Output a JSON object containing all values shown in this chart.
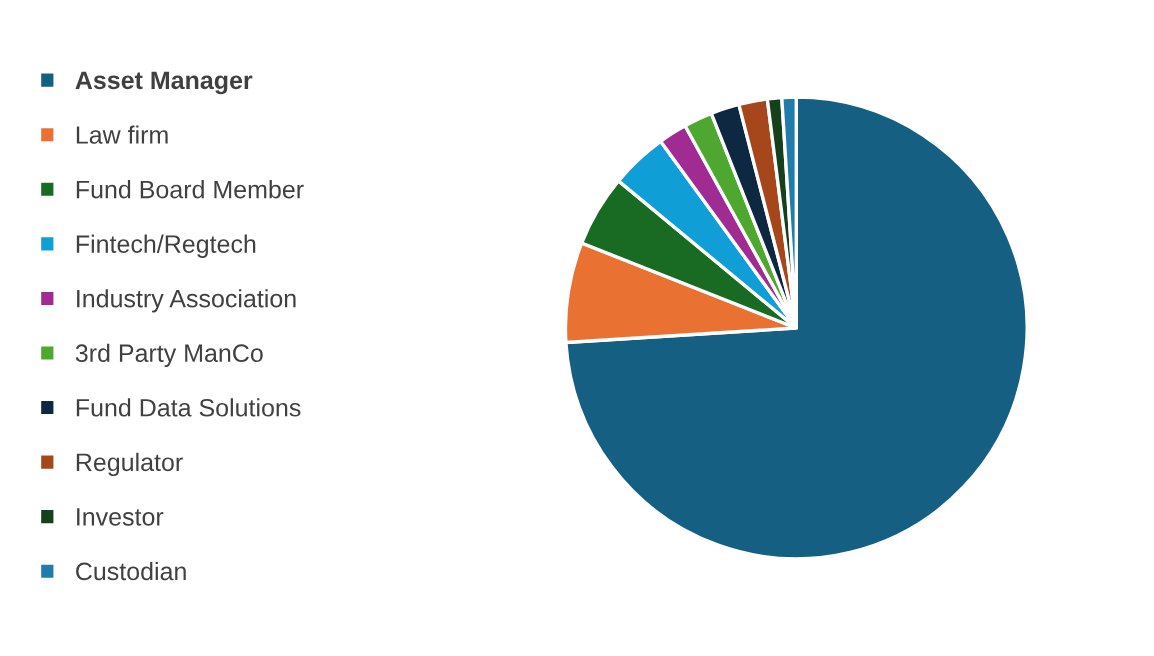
{
  "chart_data": {
    "type": "pie",
    "legend": "left",
    "categories": [
      "Asset Manager",
      "Law firm",
      "Fund Board Member",
      "Fintech/Regtech",
      "Industry Association",
      "3rd Party ManCo",
      "Fund Data Solutions",
      "Regulator",
      "Investor",
      "Custodian"
    ],
    "values": [
      74,
      7,
      5,
      4,
      2,
      2,
      2,
      2,
      1,
      1
    ],
    "colors": [
      "#156082",
      "#e97132",
      "#196b24",
      "#0f9ed5",
      "#a02b93",
      "#4ea72e",
      "#0e2841",
      "#a5461b",
      "#14401c",
      "#1f7cab"
    ]
  }
}
